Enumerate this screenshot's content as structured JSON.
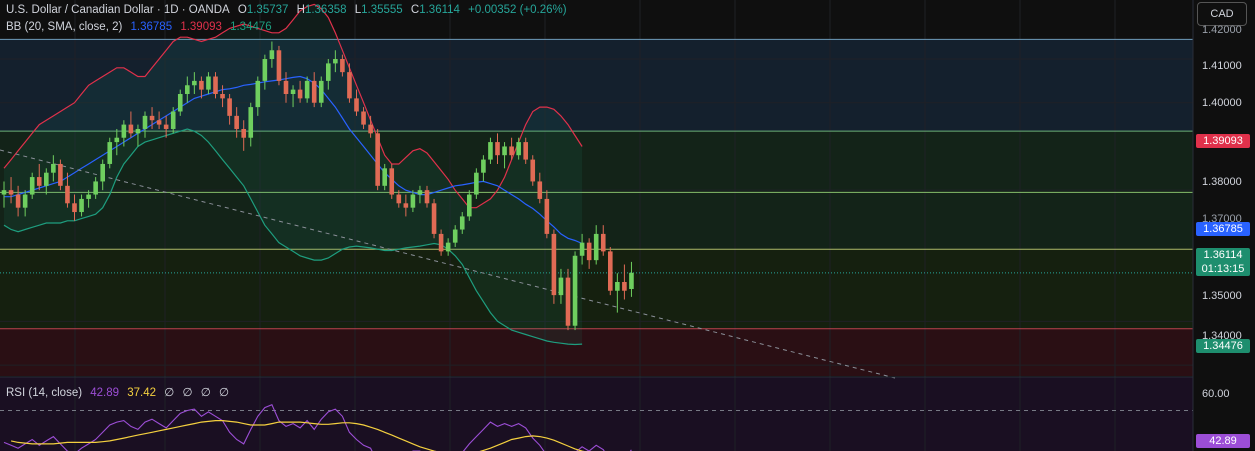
{
  "header": {
    "symbol": "U.S. Dollar / Canadian Dollar · 1D · OANDA",
    "open_label": "O",
    "open": "1.35737",
    "high_label": "H",
    "high": "1.36358",
    "low_label": "L",
    "low": "1.35555",
    "close_label": "C",
    "close": "1.36114",
    "change": "+0.00352 (+0.26%)"
  },
  "bb_legend": {
    "label": "BB (20, SMA, close, 2)",
    "basis": "1.36785",
    "upper": "1.39093",
    "lower": "1.34476"
  },
  "rsi_legend": {
    "label": "RSI (14, close)",
    "rsi": "42.89",
    "ma": "37.42",
    "n1": "∅",
    "n2": "∅",
    "n3": "∅",
    "n4": "∅"
  },
  "currency_button": "CAD",
  "price_axis": {
    "ticks": [
      "1.41000",
      "1.40000",
      "1.38000",
      "1.35000",
      "1.34000"
    ],
    "partial_ticks": [
      "1.42000",
      "1.37000"
    ],
    "ticks_values": [
      1.41,
      1.4,
      1.38,
      1.35,
      1.34
    ]
  },
  "price_tags": {
    "bb_upper": "1.39093",
    "bb_basis": "1.36785",
    "last_price": "1.36114",
    "countdown": "01:13:15",
    "bb_lower": "1.34476"
  },
  "rsi_axis": {
    "tick": "60.00",
    "value_tag": "42.89"
  },
  "colors": {
    "up": "#26a69a",
    "down": "#ef5350",
    "candle_up": "#6fcf5f",
    "candle_down": "#e06b55",
    "bb_upper": "#e0314b",
    "bb_basis": "#2962ff",
    "bb_lower": "#1e9e7f",
    "rsi_line": "#9c4ed6",
    "rsi_ma": "#f4d03f"
  },
  "chart_data": {
    "type": "candlestick",
    "price_range": [
      1.3375,
      1.4235
    ],
    "horizontal_levels": [
      1.4145,
      1.3935,
      1.3795,
      1.3665,
      1.3483
    ],
    "candles": [
      [
        1.379,
        1.382,
        1.376,
        1.38
      ],
      [
        1.38,
        1.383,
        1.377,
        1.379
      ],
      [
        1.379,
        1.381,
        1.374,
        1.376
      ],
      [
        1.376,
        1.38,
        1.374,
        1.379
      ],
      [
        1.379,
        1.384,
        1.378,
        1.383
      ],
      [
        1.383,
        1.386,
        1.38,
        1.381
      ],
      [
        1.381,
        1.385,
        1.379,
        1.384
      ],
      [
        1.384,
        1.388,
        1.382,
        1.386
      ],
      [
        1.386,
        1.387,
        1.38,
        1.381
      ],
      [
        1.381,
        1.384,
        1.376,
        1.377
      ],
      [
        1.377,
        1.379,
        1.373,
        1.375
      ],
      [
        1.375,
        1.379,
        1.374,
        1.378
      ],
      [
        1.378,
        1.38,
        1.376,
        1.379
      ],
      [
        1.379,
        1.383,
        1.378,
        1.382
      ],
      [
        1.382,
        1.387,
        1.38,
        1.386
      ],
      [
        1.386,
        1.392,
        1.385,
        1.391
      ],
      [
        1.391,
        1.394,
        1.388,
        1.392
      ],
      [
        1.392,
        1.396,
        1.39,
        1.395
      ],
      [
        1.395,
        1.398,
        1.392,
        1.393
      ],
      [
        1.393,
        1.395,
        1.39,
        1.394
      ],
      [
        1.394,
        1.398,
        1.392,
        1.397
      ],
      [
        1.397,
        1.399,
        1.394,
        1.396
      ],
      [
        1.396,
        1.398,
        1.394,
        1.395
      ],
      [
        1.395,
        1.397,
        1.392,
        1.394
      ],
      [
        1.394,
        1.399,
        1.393,
        1.398
      ],
      [
        1.398,
        1.403,
        1.397,
        1.402
      ],
      [
        1.402,
        1.406,
        1.4,
        1.404
      ],
      [
        1.404,
        1.407,
        1.402,
        1.405
      ],
      [
        1.405,
        1.406,
        1.401,
        1.403
      ],
      [
        1.403,
        1.407,
        1.402,
        1.406
      ],
      [
        1.406,
        1.407,
        1.401,
        1.402
      ],
      [
        1.402,
        1.404,
        1.399,
        1.401
      ],
      [
        1.401,
        1.402,
        1.395,
        1.397
      ],
      [
        1.397,
        1.399,
        1.392,
        1.394
      ],
      [
        1.394,
        1.396,
        1.389,
        1.392
      ],
      [
        1.392,
        1.4,
        1.39,
        1.399
      ],
      [
        1.399,
        1.406,
        1.397,
        1.405
      ],
      [
        1.405,
        1.411,
        1.403,
        1.41
      ],
      [
        1.41,
        1.414,
        1.408,
        1.412
      ],
      [
        1.412,
        1.413,
        1.404,
        1.405
      ],
      [
        1.405,
        1.407,
        1.4,
        1.402
      ],
      [
        1.402,
        1.404,
        1.399,
        1.403
      ],
      [
        1.403,
        1.405,
        1.4,
        1.401
      ],
      [
        1.401,
        1.406,
        1.4,
        1.405
      ],
      [
        1.405,
        1.407,
        1.399,
        1.4
      ],
      [
        1.4,
        1.406,
        1.399,
        1.405
      ],
      [
        1.405,
        1.41,
        1.403,
        1.409
      ],
      [
        1.409,
        1.412,
        1.407,
        1.41
      ],
      [
        1.41,
        1.411,
        1.406,
        1.407
      ],
      [
        1.407,
        1.409,
        1.4,
        1.401
      ],
      [
        1.401,
        1.403,
        1.397,
        1.398
      ],
      [
        1.398,
        1.399,
        1.394,
        1.395
      ],
      [
        1.395,
        1.397,
        1.392,
        1.393
      ],
      [
        1.393,
        1.394,
        1.38,
        1.381
      ],
      [
        1.381,
        1.386,
        1.38,
        1.385
      ],
      [
        1.385,
        1.386,
        1.378,
        1.379
      ],
      [
        1.379,
        1.38,
        1.376,
        1.377
      ],
      [
        1.377,
        1.379,
        1.374,
        1.376
      ],
      [
        1.376,
        1.38,
        1.375,
        1.379
      ],
      [
        1.379,
        1.381,
        1.377,
        1.38
      ],
      [
        1.38,
        1.381,
        1.376,
        1.377
      ],
      [
        1.377,
        1.378,
        1.369,
        1.37
      ],
      [
        1.37,
        1.371,
        1.365,
        1.366
      ],
      [
        1.366,
        1.369,
        1.365,
        1.368
      ],
      [
        1.368,
        1.372,
        1.367,
        1.371
      ],
      [
        1.371,
        1.375,
        1.37,
        1.374
      ],
      [
        1.374,
        1.38,
        1.373,
        1.379
      ],
      [
        1.379,
        1.385,
        1.378,
        1.384
      ],
      [
        1.384,
        1.388,
        1.382,
        1.387
      ],
      [
        1.387,
        1.392,
        1.386,
        1.391
      ],
      [
        1.391,
        1.393,
        1.386,
        1.388
      ],
      [
        1.388,
        1.391,
        1.385,
        1.39
      ],
      [
        1.39,
        1.392,
        1.387,
        1.388
      ],
      [
        1.388,
        1.392,
        1.387,
        1.391
      ],
      [
        1.391,
        1.392,
        1.386,
        1.387
      ],
      [
        1.387,
        1.388,
        1.381,
        1.382
      ],
      [
        1.382,
        1.384,
        1.377,
        1.378
      ],
      [
        1.378,
        1.38,
        1.369,
        1.37
      ],
      [
        1.37,
        1.371,
        1.354,
        1.356
      ],
      [
        1.356,
        1.362,
        1.354,
        1.36
      ],
      [
        1.36,
        1.362,
        1.348,
        1.349
      ],
      [
        1.349,
        1.366,
        1.348,
        1.365
      ],
      [
        1.365,
        1.37,
        1.363,
        1.368
      ],
      [
        1.368,
        1.369,
        1.362,
        1.364
      ],
      [
        1.364,
        1.372,
        1.363,
        1.37
      ],
      [
        1.37,
        1.372,
        1.365,
        1.366
      ],
      [
        1.366,
        1.367,
        1.356,
        1.357
      ],
      [
        1.357,
        1.361,
        1.352,
        1.359
      ],
      [
        1.359,
        1.363,
        1.355,
        1.357
      ],
      [
        1.3574,
        1.3636,
        1.3556,
        1.3611
      ]
    ],
    "bb_upper": [
      1.385,
      1.387,
      1.389,
      1.391,
      1.393,
      1.395,
      1.396,
      1.397,
      1.398,
      1.399,
      1.4,
      1.402,
      1.404,
      1.405,
      1.406,
      1.407,
      1.408,
      1.408,
      1.407,
      1.406,
      1.406,
      1.408,
      1.41,
      1.412,
      1.414,
      1.415,
      1.415,
      1.4145,
      1.414,
      1.4145,
      1.415,
      1.416,
      1.417,
      1.4175,
      1.418,
      1.4175,
      1.417,
      1.4165,
      1.416,
      1.416,
      1.417,
      1.419,
      1.421,
      1.422,
      1.4225,
      1.4215,
      1.4195,
      1.416,
      1.412,
      1.408,
      1.404,
      1.4,
      1.396,
      1.392,
      1.388,
      1.386,
      1.386,
      1.3875,
      1.389,
      1.3895,
      1.3885,
      1.3865,
      1.3845,
      1.3825,
      1.38,
      1.378,
      1.376,
      1.376,
      1.377,
      1.378,
      1.38,
      1.383,
      1.387,
      1.391,
      1.395,
      1.398,
      1.399,
      1.399,
      1.3985,
      1.397,
      1.395,
      1.3925,
      1.39
    ],
    "bb_basis": [
      1.3785,
      1.3785,
      1.379,
      1.3795,
      1.38,
      1.3805,
      1.381,
      1.3815,
      1.382,
      1.383,
      1.384,
      1.385,
      1.386,
      1.387,
      1.388,
      1.389,
      1.39,
      1.391,
      1.392,
      1.393,
      1.394,
      1.395,
      1.396,
      1.397,
      1.398,
      1.399,
      1.4,
      1.401,
      1.4015,
      1.402,
      1.4025,
      1.403,
      1.4032,
      1.4035,
      1.404,
      1.4042,
      1.4045,
      1.4048,
      1.405,
      1.4052,
      1.4055,
      1.4058,
      1.406,
      1.4055,
      1.4045,
      1.403,
      1.401,
      1.399,
      1.3965,
      1.394,
      1.392,
      1.39,
      1.388,
      1.386,
      1.384,
      1.3825,
      1.381,
      1.38,
      1.3795,
      1.379,
      1.379,
      1.3795,
      1.38,
      1.3805,
      1.381,
      1.3812,
      1.3815,
      1.3818,
      1.382,
      1.3815,
      1.381,
      1.38,
      1.379,
      1.378,
      1.3768,
      1.3758,
      1.3745,
      1.373,
      1.3716,
      1.37,
      1.369,
      1.3685,
      1.3678
    ],
    "bb_lower": [
      1.372,
      1.371,
      1.3705,
      1.371,
      1.3715,
      1.372,
      1.3725,
      1.3725,
      1.3725,
      1.373,
      1.373,
      1.3735,
      1.374,
      1.3745,
      1.376,
      1.379,
      1.383,
      1.386,
      1.388,
      1.39,
      1.391,
      1.3915,
      1.392,
      1.3925,
      1.393,
      1.3935,
      1.394,
      1.3935,
      1.3925,
      1.391,
      1.389,
      1.387,
      1.385,
      1.383,
      1.381,
      1.378,
      1.375,
      1.372,
      1.37,
      1.368,
      1.367,
      1.366,
      1.365,
      1.3645,
      1.364,
      1.364,
      1.3645,
      1.3655,
      1.3665,
      1.367,
      1.3672,
      1.367,
      1.3668,
      1.3665,
      1.3662,
      1.3662,
      1.3665,
      1.3668,
      1.367,
      1.3672,
      1.3675,
      1.3678,
      1.3675,
      1.3665,
      1.365,
      1.363,
      1.36,
      1.357,
      1.3545,
      1.352,
      1.35,
      1.349,
      1.348,
      1.3475,
      1.347,
      1.3465,
      1.346,
      1.3455,
      1.3452,
      1.345,
      1.3448,
      1.3447,
      1.3448
    ],
    "rsi": [
      48,
      46,
      44,
      47,
      50,
      46,
      49,
      52,
      47,
      42,
      40,
      44,
      47,
      50,
      55,
      60,
      62,
      63,
      59,
      57,
      62,
      64,
      61,
      58,
      63,
      68,
      70,
      71,
      66,
      69,
      66,
      63,
      55,
      50,
      47,
      57,
      66,
      72,
      74,
      63,
      59,
      61,
      58,
      63,
      57,
      64,
      69,
      71,
      66,
      55,
      50,
      46,
      44,
      34,
      41,
      36,
      34,
      38,
      42,
      42,
      38,
      31,
      28,
      33,
      37,
      41,
      47,
      52,
      57,
      62,
      59,
      61,
      59,
      61,
      58,
      51,
      46,
      39,
      29,
      33,
      27,
      41,
      45,
      42,
      46,
      43,
      35,
      38,
      36,
      42.89
    ],
    "rsi_ma": [
      49,
      48,
      47.5,
      47,
      47,
      47,
      47,
      47.5,
      48,
      48,
      48,
      48,
      48,
      48.5,
      49,
      50,
      51,
      52,
      53,
      54,
      55,
      56,
      57,
      58,
      59,
      60,
      61,
      62,
      62.5,
      63,
      63,
      62.5,
      62,
      61,
      60,
      60,
      60,
      61,
      62,
      62,
      62,
      62,
      61.5,
      61,
      60.5,
      60.5,
      61,
      61.5,
      61.5,
      61,
      60,
      58.5,
      57,
      55,
      53,
      51,
      49,
      47,
      45,
      43.5,
      42,
      41,
      40,
      39.5,
      39.5,
      40,
      41,
      42.5,
      44,
      46,
      48,
      50,
      51,
      52,
      52.5,
      52,
      51,
      49.5,
      47.5,
      45.5,
      43.5,
      42,
      41,
      40,
      39,
      38.5,
      38,
      37.6,
      37.42
    ],
    "rsi_range": [
      0,
      100
    ],
    "rsi_levels": [
      70,
      30
    ]
  }
}
